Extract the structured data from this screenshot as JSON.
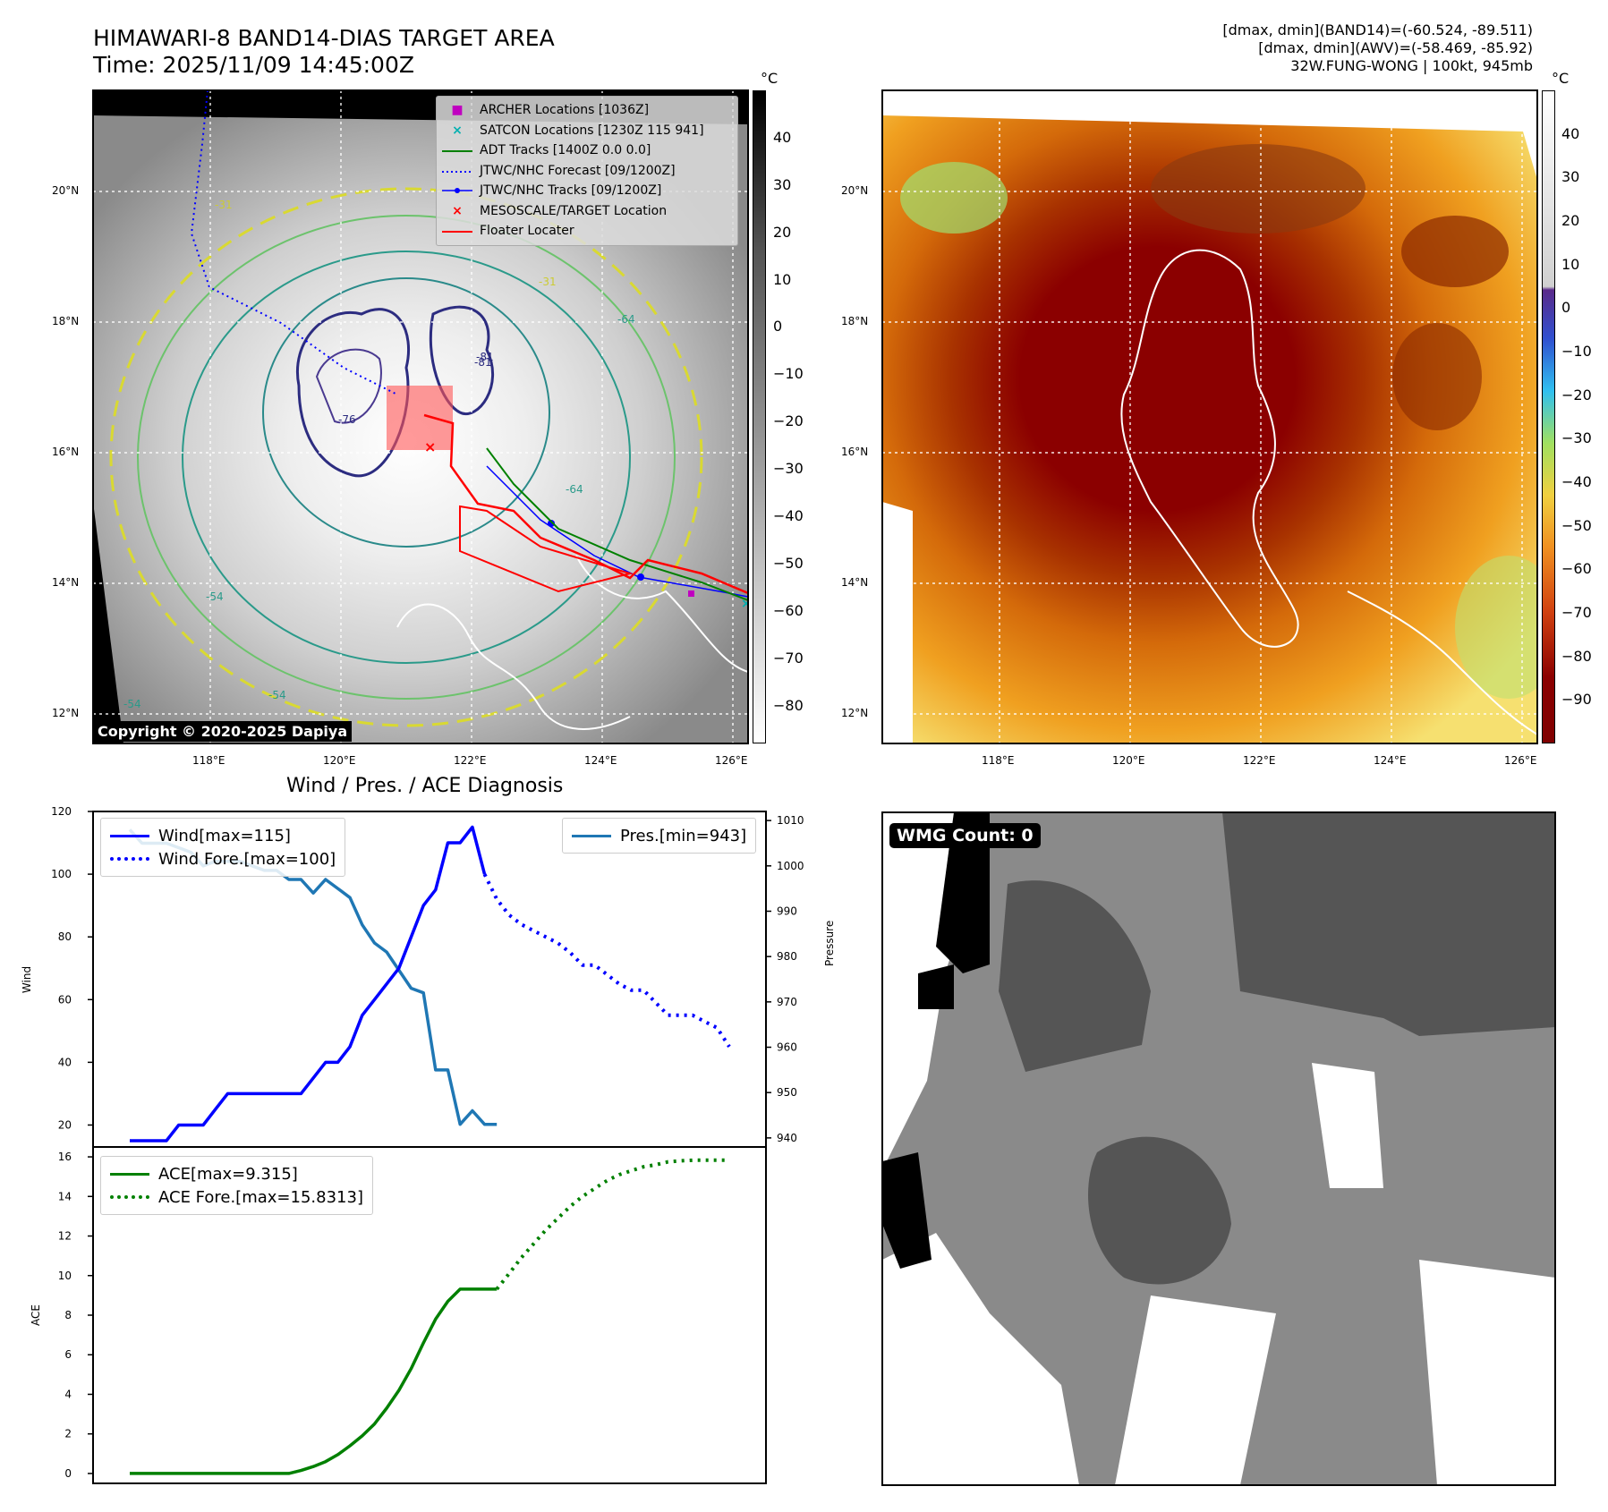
{
  "header": {
    "title_line1": "HIMAWARI-8 BAND14-DIAS TARGET AREA",
    "title_line2": "Time: 2025/11/09 14:45:00Z",
    "info_line1": "[dmax, dmin](BAND14)=(-60.524, -89.511)",
    "info_line2": "[dmax, dmin](AWV)=(-58.469, -85.92)",
    "info_line3": "32W.FUNG-WONG | 100kt, 945mb"
  },
  "map_axes": {
    "lat_labels": [
      "20°N",
      "18°N",
      "16°N",
      "14°N",
      "12°N"
    ],
    "lon_labels": [
      "118°E",
      "120°E",
      "122°E",
      "124°E",
      "126°E"
    ]
  },
  "left_map": {
    "copyright": "Copyright © 2020-2025 Dapiya",
    "legend": [
      {
        "marker": "■",
        "color": "#c000c0",
        "label": "ARCHER Locations [1036Z]"
      },
      {
        "marker": "×",
        "color": "#00b0b0",
        "label": "SATCON Locations [1230Z 115 941]"
      },
      {
        "marker": "line",
        "color": "#008000",
        "label": "ADT Tracks [1400Z 0.0 0.0]"
      },
      {
        "marker": "dotted",
        "color": "#0000ff",
        "label": "JTWC/NHC Forecast [09/1200Z]"
      },
      {
        "marker": "dotline",
        "color": "#0000ff",
        "label": "JTWC/NHC Tracks [09/1200Z]"
      },
      {
        "marker": "×",
        "color": "#ff0000",
        "label": "MESOSCALE/TARGET Location"
      },
      {
        "marker": "line",
        "color": "#ff0000",
        "label": "Floater Locater"
      }
    ],
    "colorbar_unit": "°C",
    "colorbar_ticks": [
      "40",
      "30",
      "20",
      "10",
      "0",
      "−10",
      "−20",
      "−30",
      "−40",
      "−50",
      "−60",
      "−70",
      "−80"
    ],
    "contour_labels": [
      "-31",
      "-54",
      "-64",
      "-81",
      "-76",
      "-54",
      "-31",
      "-64",
      "-54",
      "-81"
    ]
  },
  "right_map": {
    "colorbar_unit": "°C",
    "colorbar_ticks": [
      "40",
      "30",
      "20",
      "10",
      "0",
      "−10",
      "−20",
      "−30",
      "−40",
      "−50",
      "−60",
      "−70",
      "−80",
      "−90"
    ]
  },
  "wmg": {
    "label": "WMG Count: 0"
  },
  "chart_data": [
    {
      "type": "line",
      "title": "Wind / Pres. / ACE Diagnosis",
      "ylabel": "Wind",
      "ylabel_right": "Pressure",
      "ylim": [
        13,
        120
      ],
      "ylim_right": [
        938,
        1012
      ],
      "yticks": [
        "120",
        "100",
        "80",
        "60",
        "40",
        "20"
      ],
      "yticks_right": [
        "1010",
        "1000",
        "990",
        "980",
        "970",
        "960",
        "950",
        "940"
      ],
      "legend_left": [
        "Wind[max=115]",
        "Wind Fore.[max=100]"
      ],
      "legend_right": [
        "Pres.[min=943]"
      ],
      "series": [
        {
          "name": "Wind",
          "axis": "left",
          "color": "#0000ff",
          "style": "solid",
          "x": [
            0,
            1,
            2,
            3,
            4,
            5,
            6,
            7,
            8,
            9,
            10,
            11,
            12,
            13,
            14,
            15,
            16,
            17,
            18,
            19,
            20,
            21,
            22,
            23,
            24,
            25,
            26,
            27,
            28,
            29
          ],
          "values": [
            15,
            15,
            15,
            15,
            20,
            20,
            20,
            25,
            30,
            30,
            30,
            30,
            30,
            30,
            30,
            35,
            40,
            40,
            45,
            55,
            60,
            65,
            70,
            80,
            90,
            95,
            110,
            110,
            115,
            100
          ]
        },
        {
          "name": "Wind Fore.",
          "axis": "left",
          "color": "#0000ff",
          "style": "dotted",
          "x": [
            29,
            30,
            31,
            32,
            33,
            34,
            35,
            36,
            37,
            38,
            39,
            40,
            41,
            42,
            43,
            44,
            45,
            46,
            47,
            48,
            49
          ],
          "values": [
            100,
            92,
            87,
            84,
            82,
            80,
            78,
            75,
            71,
            71,
            68,
            65,
            63,
            63,
            59,
            55,
            55,
            55,
            53,
            51,
            45
          ]
        },
        {
          "name": "Pres.",
          "axis": "right",
          "color": "#1f77b4",
          "style": "solid",
          "x": [
            0,
            1,
            2,
            3,
            4,
            5,
            6,
            7,
            8,
            9,
            10,
            11,
            12,
            13,
            14,
            15,
            16,
            17,
            18,
            19,
            20,
            21,
            22,
            23,
            24,
            25,
            26,
            27,
            28,
            29,
            30
          ],
          "values": [
            1008,
            1005,
            1005,
            1005,
            1004,
            1003,
            1000,
            1001,
            1001,
            1001,
            1000,
            999,
            999,
            997,
            997,
            994,
            997,
            995,
            993,
            987,
            983,
            981,
            977,
            973,
            972,
            955,
            955,
            943,
            946,
            943,
            943
          ]
        }
      ]
    },
    {
      "type": "line",
      "ylabel": "ACE",
      "ylim": [
        -0.5,
        16.5
      ],
      "yticks": [
        "16",
        "14",
        "12",
        "10",
        "8",
        "6",
        "4",
        "2",
        "0"
      ],
      "legend": [
        "ACE[max=9.315]",
        "ACE Fore.[max=15.8313]"
      ],
      "series": [
        {
          "name": "ACE",
          "color": "#008000",
          "style": "solid",
          "x": [
            0,
            1,
            2,
            3,
            4,
            5,
            6,
            7,
            8,
            9,
            10,
            11,
            12,
            13,
            14,
            15,
            16,
            17,
            18,
            19,
            20,
            21,
            22,
            23,
            24,
            25,
            26,
            27,
            28,
            29,
            30
          ],
          "values": [
            0,
            0,
            0,
            0,
            0,
            0,
            0,
            0,
            0,
            0,
            0,
            0,
            0,
            0,
            0.15,
            0.35,
            0.6,
            0.95,
            1.4,
            1.9,
            2.5,
            3.3,
            4.2,
            5.3,
            6.6,
            7.8,
            8.7,
            9.315,
            9.315,
            9.315,
            9.315
          ]
        },
        {
          "name": "ACE Fore.",
          "color": "#008000",
          "style": "dotted",
          "x": [
            30,
            31,
            32,
            33,
            34,
            35,
            36,
            37,
            38,
            39,
            40,
            41,
            42,
            43,
            44,
            45,
            46,
            47,
            48,
            49
          ],
          "values": [
            9.315,
            10.1,
            10.9,
            11.6,
            12.3,
            12.9,
            13.5,
            14.0,
            14.4,
            14.8,
            15.1,
            15.3,
            15.5,
            15.6,
            15.75,
            15.8,
            15.83,
            15.83,
            15.83,
            15.83
          ]
        }
      ]
    }
  ]
}
